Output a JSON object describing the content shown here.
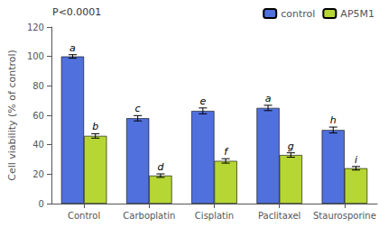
{
  "chart_data": {
    "type": "bar",
    "categories": [
      "Control",
      "Carboplatin",
      "Cisplatin",
      "Paclitaxel",
      "Staurosporine"
    ],
    "series": [
      {
        "name": "control",
        "values": [
          100,
          58,
          63,
          65,
          50
        ],
        "errors": [
          1.2,
          1.8,
          2.0,
          1.8,
          2.0
        ],
        "annotations": [
          "a",
          "c",
          "e",
          "a",
          "h"
        ]
      },
      {
        "name": "AP5M1",
        "values": [
          46,
          19,
          29,
          33,
          24
        ],
        "errors": [
          1.5,
          1.2,
          1.5,
          1.5,
          1.2
        ],
        "annotations": [
          "b",
          "d",
          "f",
          "g",
          "i"
        ]
      }
    ],
    "ylabel": "Cell viability (% of control)",
    "ylim": [
      0,
      120
    ],
    "yticks": [
      0,
      20,
      40,
      60,
      80,
      100,
      120
    ],
    "annotation": "P<0.0001",
    "legend": "upper right",
    "grid": false
  }
}
